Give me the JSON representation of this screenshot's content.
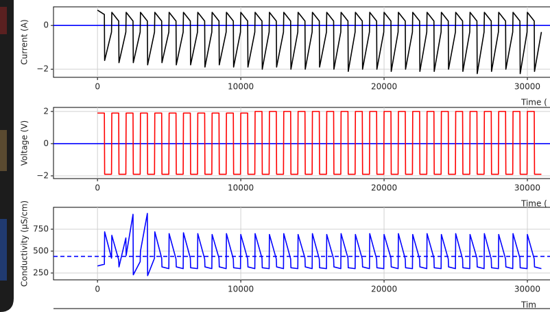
{
  "chart_data": [
    {
      "type": "line",
      "ylabel": "Current (A)",
      "xlabel": "Time (",
      "xlim": [
        -3070,
        31580
      ],
      "ylim": [
        -2.37,
        0.85
      ],
      "xticks": [
        0,
        10000,
        20000,
        30000
      ],
      "yticks": [
        {
          "value": -2,
          "label": "−2"
        },
        0
      ],
      "grid": true,
      "hlines": [
        {
          "value": 0,
          "color": "#0000ff"
        }
      ],
      "x": [
        0,
        480,
        500,
        980,
        1000,
        1480,
        1500,
        1980,
        2000,
        2480,
        2500,
        2980,
        3000,
        3480,
        3500,
        3980,
        4000,
        4480,
        4500,
        4980,
        5000,
        5480,
        5500,
        5980,
        6000,
        6480,
        6500,
        6980,
        7000,
        7480,
        7500,
        7980,
        8000,
        8480,
        8500,
        8980,
        9000,
        9480,
        9500,
        9980,
        10000,
        10480,
        10500,
        10980,
        11000,
        11480,
        11500,
        11980,
        12000,
        12480,
        12500,
        12980,
        13000,
        13480,
        13500,
        13980,
        14000,
        14480,
        14500,
        14980,
        15000,
        15480,
        15500,
        15980,
        16000,
        16480,
        16500,
        16980,
        17000,
        17480,
        17500,
        17980,
        18000,
        18480,
        18500,
        18980,
        19000,
        19480,
        19500,
        19980,
        20000,
        20480,
        20500,
        20980,
        21000,
        21480,
        21500,
        21980,
        22000,
        22480,
        22500,
        22980,
        23000,
        23480,
        23500,
        23980,
        24000,
        24480,
        24500,
        24980,
        25000,
        25480,
        25500,
        25980,
        26000,
        26480,
        26500,
        26980,
        27000,
        27480,
        27500,
        27980,
        28000,
        28480,
        28500,
        28980,
        29000,
        29480,
        29500,
        29980,
        30000,
        30480,
        30500,
        30980
      ],
      "series": [
        {
          "color": "#000000",
          "values": [
            0.7,
            0.5,
            -1.6,
            -0.3,
            0.6,
            0.2,
            -1.7,
            -0.3,
            0.6,
            0.2,
            -1.7,
            -0.3,
            0.6,
            0.2,
            -1.8,
            -0.3,
            0.6,
            0.2,
            -1.7,
            -0.3,
            0.6,
            0.2,
            -1.8,
            -0.3,
            0.6,
            0.2,
            -1.8,
            -0.3,
            0.6,
            0.2,
            -1.9,
            -0.3,
            0.6,
            0.2,
            -1.8,
            -0.3,
            0.6,
            0.2,
            -1.9,
            -0.3,
            0.6,
            0.2,
            -1.9,
            -0.3,
            0.6,
            0.2,
            -2.0,
            -0.3,
            0.6,
            0.2,
            -1.9,
            -0.3,
            0.6,
            0.2,
            -2.0,
            -0.3,
            0.6,
            0.2,
            -2.0,
            -0.3,
            0.6,
            0.2,
            -1.9,
            -0.3,
            0.6,
            0.2,
            -2.0,
            -0.3,
            0.6,
            0.2,
            -2.1,
            -0.3,
            0.6,
            0.2,
            -2.0,
            -0.3,
            0.6,
            0.2,
            -2.0,
            -0.3,
            0.6,
            0.2,
            -2.1,
            -0.3,
            0.6,
            0.2,
            -2.0,
            -0.3,
            0.6,
            0.2,
            -2.1,
            -0.3,
            0.6,
            0.2,
            -2.1,
            -0.3,
            0.6,
            0.2,
            -2.0,
            -0.3,
            0.6,
            0.2,
            -2.1,
            -0.3,
            0.6,
            0.2,
            -2.2,
            -0.3,
            0.6,
            0.2,
            -2.1,
            -0.3,
            0.6,
            0.2,
            -2.0,
            -0.3,
            0.6,
            0.2,
            -2.2,
            -0.3,
            0.6,
            0.2,
            -2.1,
            -0.3
          ]
        }
      ]
    },
    {
      "type": "line",
      "ylabel": "Voltage (V)",
      "xlabel": "Time (",
      "xlim": [
        -3070,
        31580
      ],
      "ylim": [
        -2.17,
        2.25
      ],
      "xticks": [
        0,
        10000,
        20000,
        30000
      ],
      "yticks": [
        {
          "value": -2,
          "label": "−2"
        },
        0,
        2
      ],
      "grid": true,
      "hlines": [
        {
          "value": 0,
          "color": "#0000ff"
        }
      ],
      "x": [
        0,
        480,
        500,
        980,
        1000,
        1480,
        1500,
        1980,
        2000,
        2480,
        2500,
        2980,
        3000,
        3480,
        3500,
        3980,
        4000,
        4480,
        4500,
        4980,
        5000,
        5480,
        5500,
        5980,
        6000,
        6480,
        6500,
        6980,
        7000,
        7480,
        7500,
        7980,
        8000,
        8480,
        8500,
        8980,
        9000,
        9480,
        9500,
        9980,
        10000,
        10480,
        10500,
        10980,
        11000,
        11480,
        11500,
        11980,
        12000,
        12480,
        12500,
        12980,
        13000,
        13480,
        13500,
        13980,
        14000,
        14480,
        14500,
        14980,
        15000,
        15480,
        15500,
        15980,
        16000,
        16480,
        16500,
        16980,
        17000,
        17480,
        17500,
        17980,
        18000,
        18480,
        18500,
        18980,
        19000,
        19480,
        19500,
        19980,
        20000,
        20480,
        20500,
        20980,
        21000,
        21480,
        21500,
        21980,
        22000,
        22480,
        22500,
        22980,
        23000,
        23480,
        23500,
        23980,
        24000,
        24480,
        24500,
        24980,
        25000,
        25480,
        25500,
        25980,
        26000,
        26480,
        26500,
        26980,
        27000,
        27480,
        27500,
        27980,
        28000,
        28480,
        28500,
        28980,
        29000,
        29480,
        29500,
        29980,
        30000,
        30480,
        30500,
        30980
      ],
      "series": [
        {
          "color": "#ff0000",
          "values": [
            1.9,
            1.9,
            -1.9,
            -1.9,
            1.9,
            1.9,
            -1.9,
            -1.9,
            1.9,
            1.9,
            -1.9,
            -1.9,
            1.9,
            1.9,
            -1.9,
            -1.9,
            1.9,
            1.9,
            -1.9,
            -1.9,
            1.9,
            1.9,
            -1.9,
            -1.9,
            1.9,
            1.9,
            -1.9,
            -1.9,
            1.9,
            1.9,
            -1.9,
            -1.9,
            1.9,
            1.9,
            -1.9,
            -1.9,
            1.9,
            1.9,
            -1.9,
            -1.9,
            1.9,
            1.9,
            -1.9,
            -1.9,
            2.0,
            2.0,
            -1.9,
            -1.9,
            2.0,
            2.0,
            -1.9,
            -1.9,
            2.0,
            2.0,
            -1.9,
            -1.9,
            2.0,
            2.0,
            -1.9,
            -1.9,
            2.0,
            2.0,
            -1.9,
            -1.9,
            2.0,
            2.0,
            -1.9,
            -1.9,
            2.0,
            2.0,
            -1.9,
            -1.9,
            2.0,
            2.0,
            -1.9,
            -1.9,
            2.0,
            2.0,
            -1.9,
            -1.9,
            2.0,
            2.0,
            -1.9,
            -1.9,
            2.0,
            2.0,
            -1.9,
            -1.9,
            2.0,
            2.0,
            -1.9,
            -1.9,
            2.0,
            2.0,
            -1.9,
            -1.9,
            2.0,
            2.0,
            -1.9,
            -1.9,
            2.0,
            2.0,
            -1.9,
            -1.9,
            2.0,
            2.0,
            -1.9,
            -1.9,
            2.0,
            2.0,
            -1.9,
            -1.9,
            2.0,
            2.0,
            -1.9,
            -1.9,
            2.0,
            2.0,
            -1.9,
            -1.9,
            2.0,
            2.0,
            -1.9,
            -1.9
          ]
        }
      ]
    },
    {
      "type": "line",
      "ylabel": "Conductivity (µS/cm)",
      "xlabel": "Tim",
      "xlim": [
        -3070,
        31580
      ],
      "ylim": [
        172,
        1000
      ],
      "xticks": [
        0,
        10000,
        20000,
        30000
      ],
      "yticks": [
        250,
        500,
        750
      ],
      "grid": true,
      "hlines": [
        {
          "value": 440,
          "color": "#0000ff",
          "dash": true
        }
      ],
      "x": [
        0,
        480,
        500,
        980,
        1000,
        1480,
        1500,
        1980,
        2000,
        2480,
        2500,
        2980,
        3000,
        3480,
        3500,
        3980,
        4000,
        4480,
        4500,
        4980,
        5000,
        5480,
        5500,
        5980,
        6000,
        6480,
        6500,
        6980,
        7000,
        7480,
        7500,
        7980,
        8000,
        8480,
        8500,
        8980,
        9000,
        9480,
        9500,
        9980,
        10000,
        10480,
        10500,
        10980,
        11000,
        11480,
        11500,
        11980,
        12000,
        12480,
        12500,
        12980,
        13000,
        13480,
        13500,
        13980,
        14000,
        14480,
        14500,
        14980,
        15000,
        15480,
        15500,
        15980,
        16000,
        16480,
        16500,
        16980,
        17000,
        17480,
        17500,
        17980,
        18000,
        18480,
        18500,
        18980,
        19000,
        19480,
        19500,
        19980,
        20000,
        20480,
        20500,
        20980,
        21000,
        21480,
        21500,
        21980,
        22000,
        22480,
        22500,
        22980,
        23000,
        23480,
        23500,
        23980,
        24000,
        24480,
        24500,
        24980,
        25000,
        25480,
        25500,
        25980,
        26000,
        26480,
        26500,
        26980,
        27000,
        27480,
        27500,
        27980,
        28000,
        28480,
        28500,
        28980,
        29000,
        29480,
        29500,
        29980,
        30000,
        30480,
        30500,
        30980
      ],
      "series": [
        {
          "color": "#0000ff",
          "values": [
            330,
            350,
            720,
            420,
            680,
            400,
            320,
            650,
            450,
            920,
            230,
            380,
            500,
            930,
            220,
            420,
            720,
            420,
            320,
            300,
            700,
            410,
            320,
            300,
            710,
            420,
            310,
            300,
            700,
            410,
            320,
            300,
            690,
            420,
            320,
            300,
            700,
            410,
            310,
            300,
            690,
            410,
            320,
            300,
            700,
            420,
            310,
            300,
            690,
            410,
            320,
            300,
            700,
            410,
            310,
            300,
            690,
            420,
            320,
            300,
            700,
            410,
            310,
            300,
            690,
            410,
            320,
            300,
            700,
            420,
            310,
            300,
            690,
            410,
            320,
            300,
            700,
            410,
            310,
            300,
            690,
            420,
            320,
            300,
            700,
            410,
            310,
            300,
            690,
            410,
            320,
            300,
            700,
            420,
            310,
            300,
            690,
            410,
            320,
            300,
            700,
            410,
            310,
            300,
            690,
            420,
            320,
            300,
            700,
            410,
            310,
            300,
            690,
            410,
            320,
            300,
            700,
            420,
            310,
            300,
            690,
            410,
            320,
            300
          ]
        }
      ]
    }
  ]
}
